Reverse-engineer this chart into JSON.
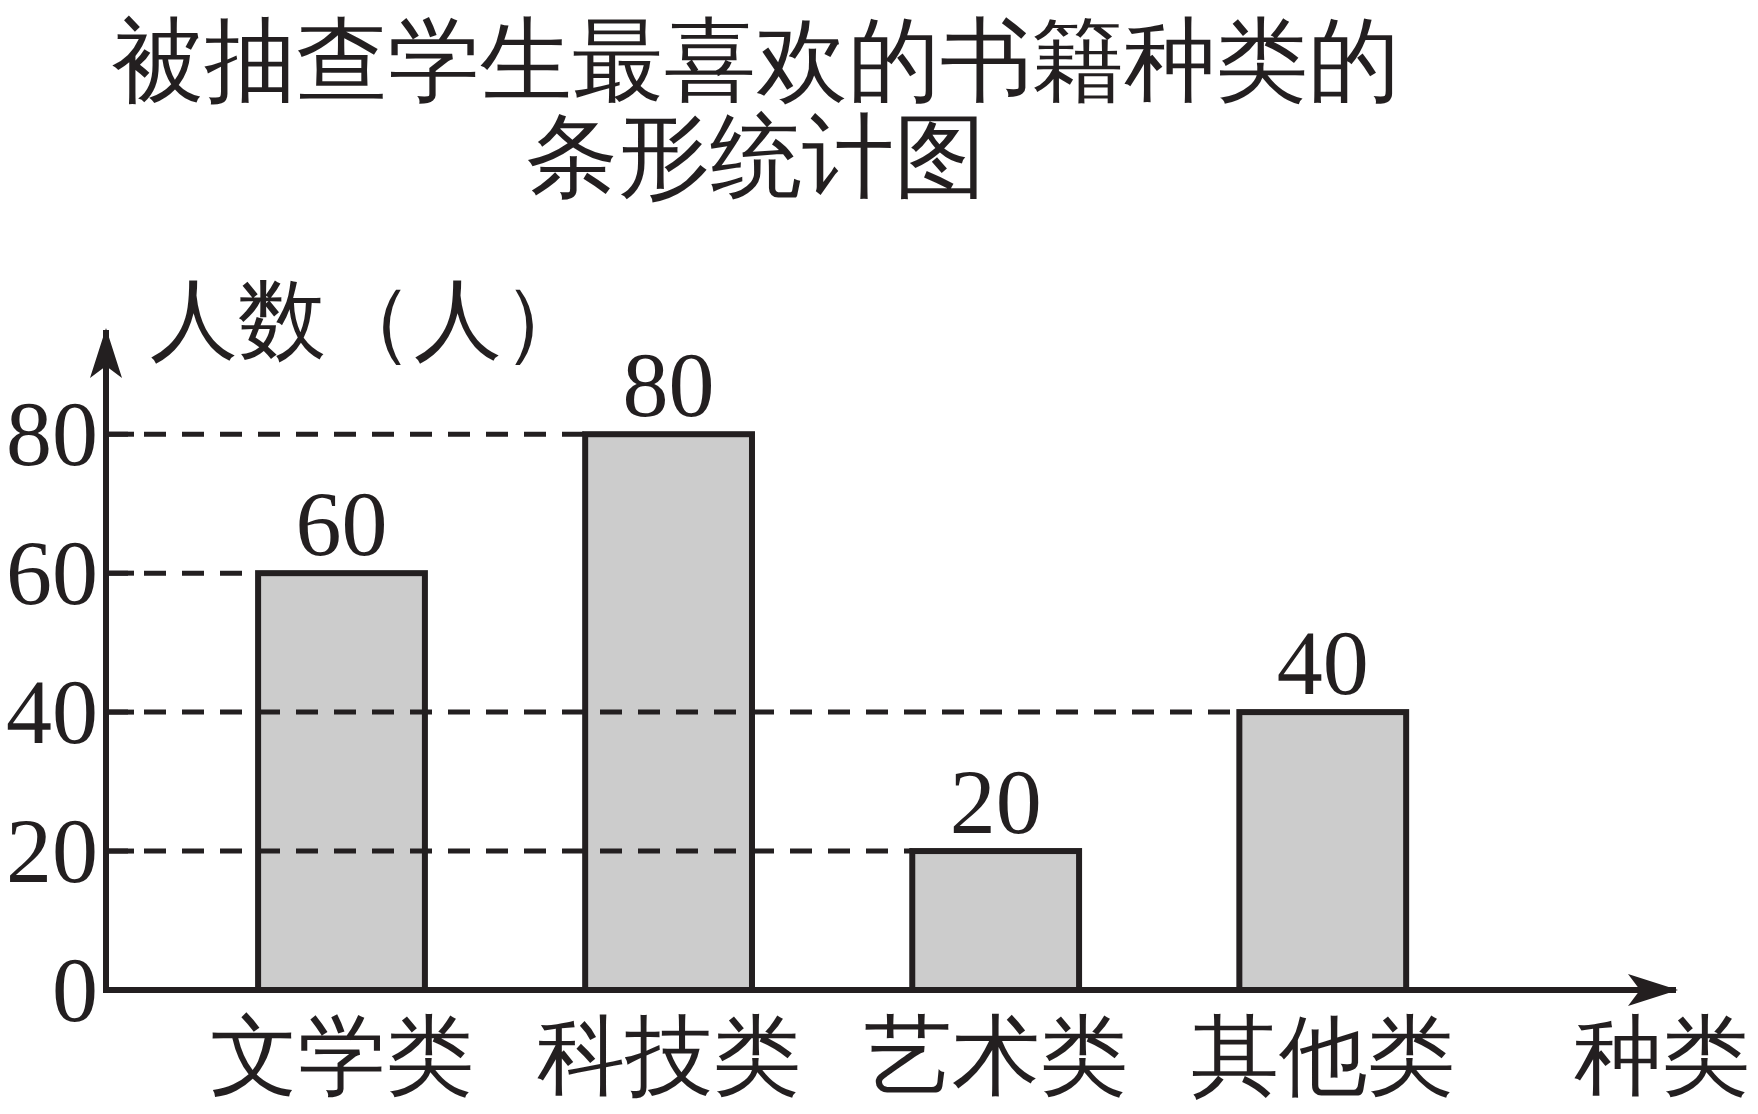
{
  "chart_data": {
    "type": "bar",
    "title": "被抽查学生最喜欢的书籍种类的条形统计图",
    "xlabel": "种类",
    "ylabel": "人数（人）",
    "categories": [
      "文学类",
      "科技类",
      "艺术类",
      "其他类"
    ],
    "values": [
      60,
      80,
      20,
      40
    ],
    "color": "#cccccc",
    "ylim": [
      0,
      95
    ],
    "yticks": [
      0,
      20,
      40,
      60,
      80
    ],
    "data_labels": true,
    "ref_lines": [
      {
        "axis": "y",
        "value": 80,
        "line_style": "dashed",
        "color": "#231f20"
      },
      {
        "axis": "y",
        "value": 60,
        "line_style": "dashed",
        "color": "#231f20"
      },
      {
        "axis": "y",
        "value": 40,
        "line_style": "dashed",
        "color": "#231f20"
      },
      {
        "axis": "y",
        "value": 20,
        "line_style": "dashed",
        "color": "#231f20"
      }
    ]
  }
}
